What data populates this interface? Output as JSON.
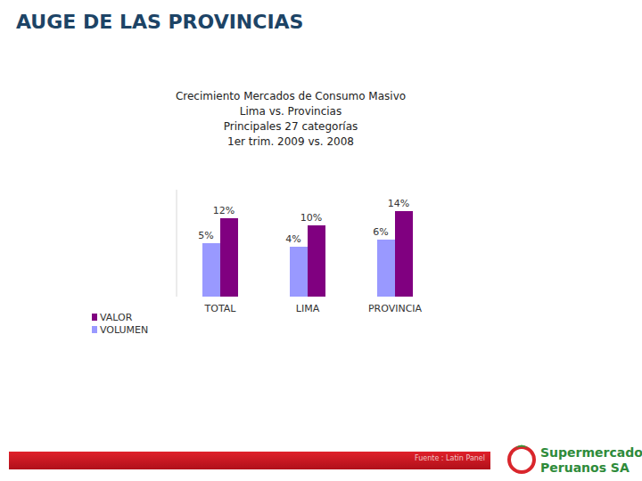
{
  "header": {
    "title": "AUGE DE LAS PROVINCIAS"
  },
  "chart_data": {
    "type": "bar",
    "title": "Crecimiento Mercados de Consumo Masivo",
    "subtitle": [
      "Lima vs. Provincias",
      "Principales 27 categorías",
      "1er trim. 2009 vs. 2008"
    ],
    "categories": [
      "TOTAL",
      "LIMA",
      "PROVINCIA"
    ],
    "series": [
      {
        "name": "VALOR",
        "color": "#800080",
        "values": [
          12,
          10,
          14
        ],
        "value_labels": [
          "12%",
          "10%",
          "14%"
        ]
      },
      {
        "name": "VOLUMEN",
        "color": "#9999ff",
        "values": [
          5,
          4,
          6
        ],
        "value_labels": [
          "5%",
          "4%",
          "6%"
        ]
      }
    ],
    "ylim": [
      -10,
      20
    ],
    "grid": false,
    "legend": "bottom-left",
    "data_labels": true,
    "tick_labels": "x"
  },
  "footer": {
    "source": "Fuente : Latin Panel",
    "logo": [
      "Supermercados",
      "Peruanos SA"
    ]
  }
}
